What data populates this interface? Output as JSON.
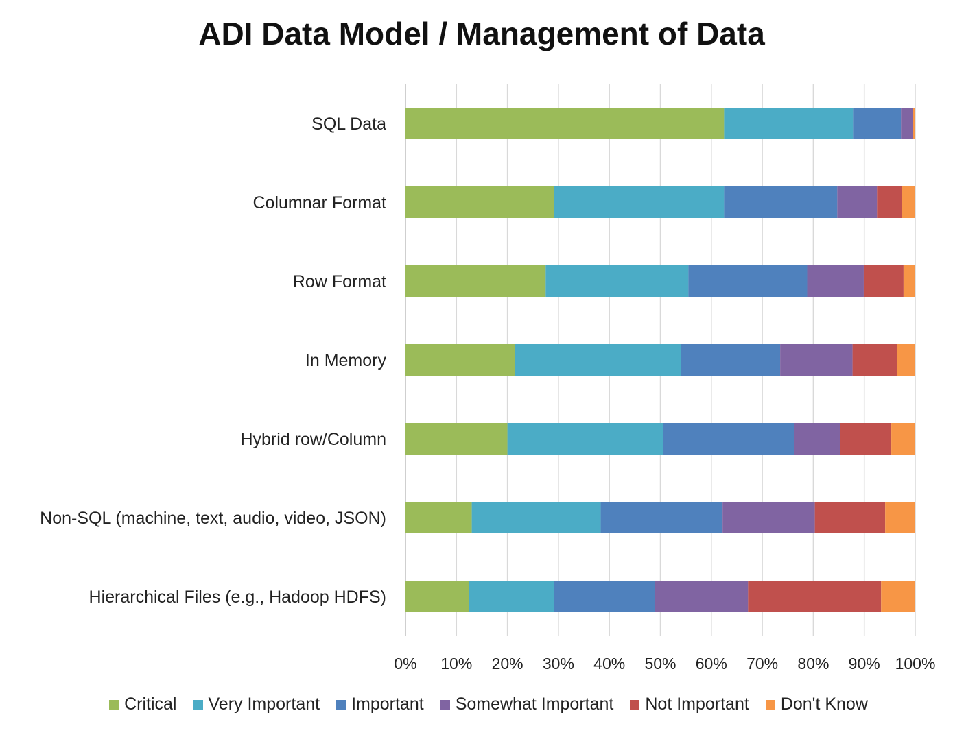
{
  "chart_data": {
    "type": "bar",
    "orientation": "horizontal",
    "stacked": "percent",
    "title": "ADI Data Model / Management of Data",
    "xlabel": "",
    "ylabel": "",
    "xlim": [
      0,
      100
    ],
    "x_ticks": [
      "0%",
      "10%",
      "20%",
      "30%",
      "40%",
      "50%",
      "60%",
      "70%",
      "80%",
      "90%",
      "100%"
    ],
    "grid": "vertical",
    "legend_position": "bottom",
    "categories": [
      "SQL Data",
      "Columnar Format",
      "Row Format",
      "In Memory",
      "Hybrid row/Column",
      "Non-SQL (machine, text, audio, video, JSON)",
      "Hierarchical Files (e.g., Hadoop HDFS)"
    ],
    "series": [
      {
        "name": "Critical",
        "color": "#9bbb59",
        "values": [
          62.5,
          29.2,
          27.5,
          21.5,
          20.0,
          13.0,
          12.5
        ]
      },
      {
        "name": "Very Important",
        "color": "#4bacc6",
        "values": [
          25.3,
          33.3,
          28.0,
          32.5,
          30.5,
          25.3,
          16.7
        ]
      },
      {
        "name": "Important",
        "color": "#4f81bd",
        "values": [
          9.4,
          22.2,
          23.3,
          19.5,
          25.8,
          23.9,
          19.7
        ]
      },
      {
        "name": "Somewhat Important",
        "color": "#8064a2",
        "values": [
          2.3,
          7.8,
          11.1,
          14.2,
          8.9,
          18.1,
          18.3
        ]
      },
      {
        "name": "Not Important",
        "color": "#c0504d",
        "values": [
          0.0,
          4.9,
          7.8,
          8.8,
          10.1,
          13.8,
          26.1
        ]
      },
      {
        "name": "Don't Know",
        "color": "#f79646",
        "values": [
          0.5,
          2.6,
          2.3,
          3.5,
          4.7,
          5.9,
          6.7
        ]
      }
    ]
  }
}
